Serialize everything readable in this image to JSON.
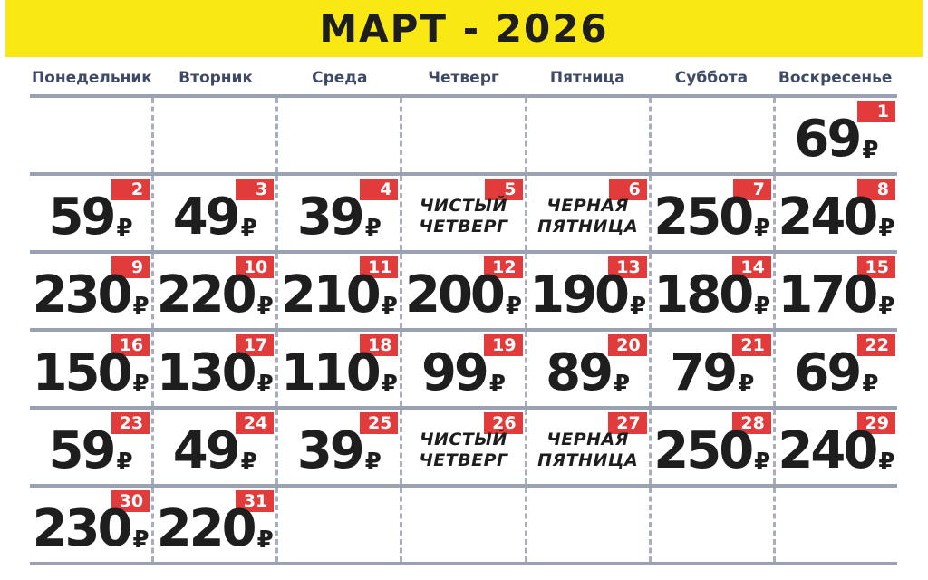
{
  "title": "МАРТ - 2026",
  "weekdays": [
    "Понедельник",
    "Вторник",
    "Среда",
    "Четверг",
    "Пятница",
    "Суббота",
    "Воскресенье"
  ],
  "currency": "₽",
  "colors": {
    "banner_yellow": "#F9E814",
    "badge_red": "#E23B3B",
    "weekday_blue": "#3F4A68",
    "text_black": "#1E1E1E",
    "grid_line_gray": "#9AA1B2",
    "dashed_line_gray": "#A8AEBE"
  },
  "weeks": [
    [
      null,
      null,
      null,
      null,
      null,
      null,
      {
        "day": "1",
        "price": "69"
      }
    ],
    [
      {
        "day": "2",
        "price": "59"
      },
      {
        "day": "3",
        "price": "49"
      },
      {
        "day": "4",
        "price": "39"
      },
      {
        "day": "5",
        "label_lines": [
          "ЧИСТЫЙ",
          "ЧЕТВЕРГ"
        ]
      },
      {
        "day": "6",
        "label_lines": [
          "ЧЕРНАЯ",
          "ПЯТНИЦА"
        ]
      },
      {
        "day": "7",
        "price": "250"
      },
      {
        "day": "8",
        "price": "240"
      }
    ],
    [
      {
        "day": "9",
        "price": "230"
      },
      {
        "day": "10",
        "price": "220"
      },
      {
        "day": "11",
        "price": "210"
      },
      {
        "day": "12",
        "price": "200"
      },
      {
        "day": "13",
        "price": "190"
      },
      {
        "day": "14",
        "price": "180"
      },
      {
        "day": "15",
        "price": "170"
      }
    ],
    [
      {
        "day": "16",
        "price": "150"
      },
      {
        "day": "17",
        "price": "130"
      },
      {
        "day": "18",
        "price": "110"
      },
      {
        "day": "19",
        "price": "99"
      },
      {
        "day": "20",
        "price": "89"
      },
      {
        "day": "21",
        "price": "79"
      },
      {
        "day": "22",
        "price": "69"
      }
    ],
    [
      {
        "day": "23",
        "price": "59"
      },
      {
        "day": "24",
        "price": "49"
      },
      {
        "day": "25",
        "price": "39"
      },
      {
        "day": "26",
        "label_lines": [
          "ЧИСТЫЙ",
          "ЧЕТВЕРГ"
        ]
      },
      {
        "day": "27",
        "label_lines": [
          "ЧЕРНАЯ",
          "ПЯТНИЦА"
        ]
      },
      {
        "day": "28",
        "price": "250"
      },
      {
        "day": "29",
        "price": "240"
      }
    ],
    [
      {
        "day": "30",
        "price": "230"
      },
      {
        "day": "31",
        "price": "220"
      },
      null,
      null,
      null,
      null,
      null
    ]
  ]
}
